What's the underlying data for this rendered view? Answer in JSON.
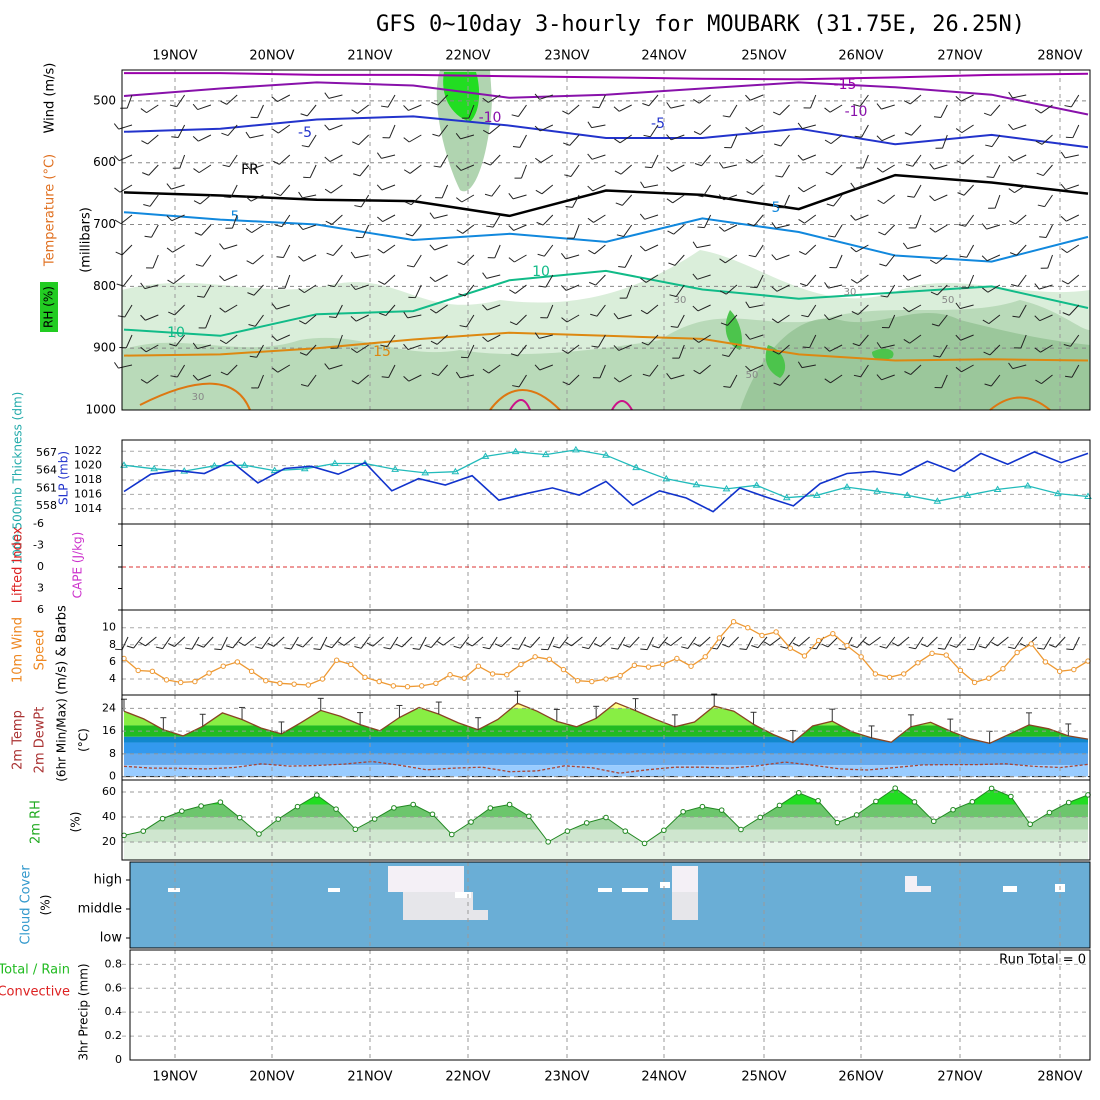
{
  "chart_data": {
    "type": "meteogram",
    "title": "GFS 0~10day 3-hourly for MOUBARK (31.75E, 26.25N)",
    "date_labels": [
      "19NOV",
      "20NOV",
      "21NOV",
      "22NOV",
      "23NOV",
      "24NOV",
      "25NOV",
      "26NOV",
      "27NOV",
      "28NOV"
    ],
    "panels": {
      "upper_air": {
        "ylabel_rh": "RH (%)",
        "ylabel_temp": "Temperature (°C)",
        "ylabel_wind": "Wind (m/s)",
        "ylabel_units": "(millibars)",
        "pressure_ticks": [
          "500",
          "600",
          "700",
          "800",
          "900",
          "1000"
        ],
        "pressure_values": [
          500,
          600,
          700,
          800,
          900,
          1000
        ],
        "ylim": [
          450,
          1000
        ],
        "contour_labels": [
          "-15",
          "-10",
          "-10",
          "-5",
          "-5",
          "FR",
          "5",
          "5",
          "10",
          "10",
          "15"
        ],
        "rh_labels": [
          "30",
          "30",
          "50",
          "50",
          "30"
        ],
        "rh_colors": [
          "#ffffff",
          "#d6ecd6",
          "#b0d4b0",
          "#8fbf8f",
          "#4cc44c",
          "#22dd22"
        ],
        "isotherms": [
          {
            "label": "-15",
            "value": -15,
            "color": "#9900aa",
            "p": [
              455,
              455,
              458,
              458,
              460,
              462,
              464,
              465,
              462,
              458,
              456
            ]
          },
          {
            "label": "-10",
            "value": -10,
            "color": "#8811aa",
            "p": [
              492,
              480,
              470,
              475,
              495,
              490,
              480,
              470,
              478,
              490,
              522
            ]
          },
          {
            "label": "-5",
            "value": -5,
            "color": "#2233cc",
            "p": [
              550,
              545,
              530,
              525,
              540,
              560,
              560,
              545,
              570,
              555,
              575
            ]
          },
          {
            "label": "FR",
            "value": 0,
            "color": "#000000",
            "p": [
              648,
              653,
              660,
              662,
              686,
              645,
              652,
              675,
              620,
              632,
              650
            ]
          },
          {
            "label": "5",
            "value": 5,
            "color": "#1188dd",
            "p": [
              680,
              692,
              700,
              725,
              715,
              728,
              690,
              712,
              750,
              760,
              720
            ]
          },
          {
            "label": "10",
            "value": 10,
            "color": "#11bb88",
            "p": [
              870,
              880,
              845,
              840,
              790,
              775,
              805,
              820,
              810,
              800,
              835
            ]
          },
          {
            "label": "15",
            "value": 15,
            "color": "#dd8811",
            "p": [
              912,
              910,
              900,
              886,
              875,
              880,
              885,
              910,
              920,
              918,
              920
            ]
          }
        ]
      },
      "slp": {
        "ylabel_thickness": "1000-500mb Thickness (dm)",
        "ylabel_slp": "SLP (mb)",
        "thickness_ticks": [
          "558",
          "561",
          "564",
          "567"
        ],
        "slp_ticks": [
          "1014",
          "1016",
          "1018",
          "1020",
          "1022"
        ],
        "slp_color": "#1133cc",
        "thickness_color": "#22bbbb",
        "slp": [
          1016.4,
          1018.8,
          1019.3,
          1018.9,
          1020.6,
          1017.6,
          1019.6,
          1019.9,
          1018.8,
          1020.4,
          1016.5,
          1018.2,
          1017.3,
          1018.6,
          1015.2,
          1016.1,
          1016.9,
          1015.9,
          1017.8,
          1014.5,
          1016.5,
          1015.5,
          1013.6,
          1016.9,
          1015.6,
          1014.4,
          1017.5,
          1018.9,
          1019.2,
          1018.7,
          1020.6,
          1019.2,
          1021.7,
          1020.2,
          1021.9,
          1020.4,
          1021.7
        ],
        "thickness": [
          564.9,
          564.3,
          563.9,
          564.8,
          564.9,
          564.0,
          564.3,
          565.2,
          565.2,
          564.2,
          563.6,
          563.8,
          566.4,
          567.2,
          566.7,
          567.5,
          566.6,
          564.5,
          562.6,
          561.6,
          560.9,
          561.5,
          559.4,
          559.8,
          561.2,
          560.5,
          559.8,
          558.8,
          559.8,
          560.8,
          561.4,
          560.1,
          559.6
        ]
      },
      "stability": {
        "ylabel_li": "Lifted Index",
        "ylabel_cape": "CAPE (J/kg)",
        "li_ticks": [
          "-6",
          "-3",
          "0",
          "3",
          "6"
        ],
        "li_values": [
          -6,
          -3,
          0,
          3,
          6
        ],
        "zero_line_color": "#dd3333"
      },
      "wind10m": {
        "ylabel_wind": "10m Wind",
        "ylabel_speed": "Speed",
        "ylabel_barbs": "(m/s) & Barbs",
        "ticks": [
          "4",
          "6",
          "8",
          "10"
        ],
        "tick_values": [
          4,
          6,
          8,
          10
        ],
        "speed_color": "#ee9933",
        "speed": [
          6.4,
          5.0,
          4.9,
          3.9,
          3.6,
          3.7,
          4.7,
          5.5,
          6.0,
          4.9,
          3.8,
          3.5,
          3.4,
          3.3,
          4.0,
          6.2,
          5.7,
          4.2,
          3.7,
          3.2,
          3.1,
          3.2,
          3.5,
          4.5,
          4.1,
          5.5,
          4.6,
          4.5,
          5.7,
          6.6,
          6.3,
          5.1,
          3.8,
          3.7,
          4.0,
          4.4,
          5.6,
          5.4,
          5.7,
          6.4,
          5.5,
          6.6,
          8.8,
          10.7,
          10.0,
          9.1,
          9.5,
          7.6,
          6.7,
          8.5,
          9.3,
          7.9,
          6.6,
          4.6,
          4.2,
          4.6,
          5.9,
          7.0,
          6.8,
          5.0,
          3.6,
          4.1,
          5.2,
          7.1,
          8.1,
          6.0,
          4.9,
          5.1,
          6.1
        ]
      },
      "temp2m": {
        "ylabel_temp": "2m Temp",
        "ylabel_dewpt": "2m DewPt",
        "ylabel_minmax": "(6hr Min/Max)",
        "ylabel_units": "(°C)",
        "ticks": [
          "0",
          "8",
          "16",
          "24"
        ],
        "tick_values": [
          0,
          8,
          16,
          24
        ],
        "band_colors": [
          "#ffff88",
          "#88ee44",
          "#22bb22",
          "#1188cc",
          "#3399ee",
          "#66aaee",
          "#99ccff"
        ],
        "temp": [
          23.0,
          20.3,
          16.5,
          14.3,
          17.7,
          22.4,
          20.1,
          17.0,
          15.0,
          19.0,
          23.3,
          21.2,
          18.3,
          16.1,
          20.8,
          24.3,
          22.0,
          18.9,
          16.5,
          20.1,
          25.8,
          23.0,
          19.4,
          17.5,
          20.5,
          26.0,
          23.2,
          20.2,
          17.5,
          19.2,
          24.8,
          23.0,
          18.4,
          14.8,
          12.0,
          17.8,
          19.5,
          15.8,
          13.6,
          12.1,
          17.5,
          19.1,
          16.0,
          13.3,
          11.7,
          14.9,
          18.2,
          16.8,
          14.3,
          13.2
        ],
        "dewpoint": [
          3.6,
          3.0,
          2.9,
          2.7,
          3.2,
          4.5,
          3.7,
          3.9,
          4.4,
          5.3,
          4.0,
          2.4,
          3.0,
          3.3,
          1.7,
          2.0,
          3.8,
          3.1,
          1.2,
          2.4,
          3.3,
          3.3,
          3.0,
          3.8,
          5.1,
          4.0,
          2.7,
          2.3,
          3.2,
          4.1,
          4.2,
          4.2,
          4.5,
          3.6,
          3.2,
          4.3
        ]
      },
      "rh2m": {
        "ylabel_rh": "2m RH",
        "ylabel_units": "(%)",
        "ticks": [
          "20",
          "40",
          "60"
        ],
        "tick_values": [
          20,
          40,
          60
        ],
        "band_colors": [
          "#e8f4e8",
          "#cfe6cf",
          "#a5d5a5",
          "#6cc66c",
          "#22dd22"
        ],
        "rh": [
          25.3,
          28.7,
          38.7,
          44.7,
          48.8,
          51.9,
          39.5,
          26.4,
          38.3,
          48.3,
          57.5,
          46.3,
          30.2,
          38.4,
          47.3,
          50.0,
          42.2,
          26.0,
          36.0,
          47.2,
          50.0,
          40.6,
          20.1,
          28.7,
          35.3,
          39.6,
          28.7,
          18.9,
          29.4,
          44.2,
          48.3,
          45.5,
          30.0,
          39.7,
          49.3,
          59.4,
          53.0,
          35.5,
          41.7,
          52.5,
          63.1,
          52.1,
          36.6,
          45.8,
          52.2,
          62.9,
          56.4,
          34.2,
          43.6,
          51.6,
          57.7
        ]
      },
      "cloud": {
        "ylabel_cloud": "Cloud Cover",
        "ylabel_units": "(%)",
        "levels": [
          "high",
          "middle",
          "low"
        ],
        "background_color": "#6aaed6"
      },
      "precip": {
        "ylabel_total": "Total / Rain",
        "ylabel_conv": "Convective",
        "ylabel_units": "3hr Precip (mm)",
        "ticks": [
          "0",
          "0.2",
          "0.4",
          "0.6",
          "0.8"
        ],
        "tick_values": [
          0,
          0.2,
          0.4,
          0.6,
          0.8
        ],
        "run_total": "Run Total = 0",
        "total_color": "#22cc22",
        "convective_color": "#ee3333"
      }
    }
  }
}
